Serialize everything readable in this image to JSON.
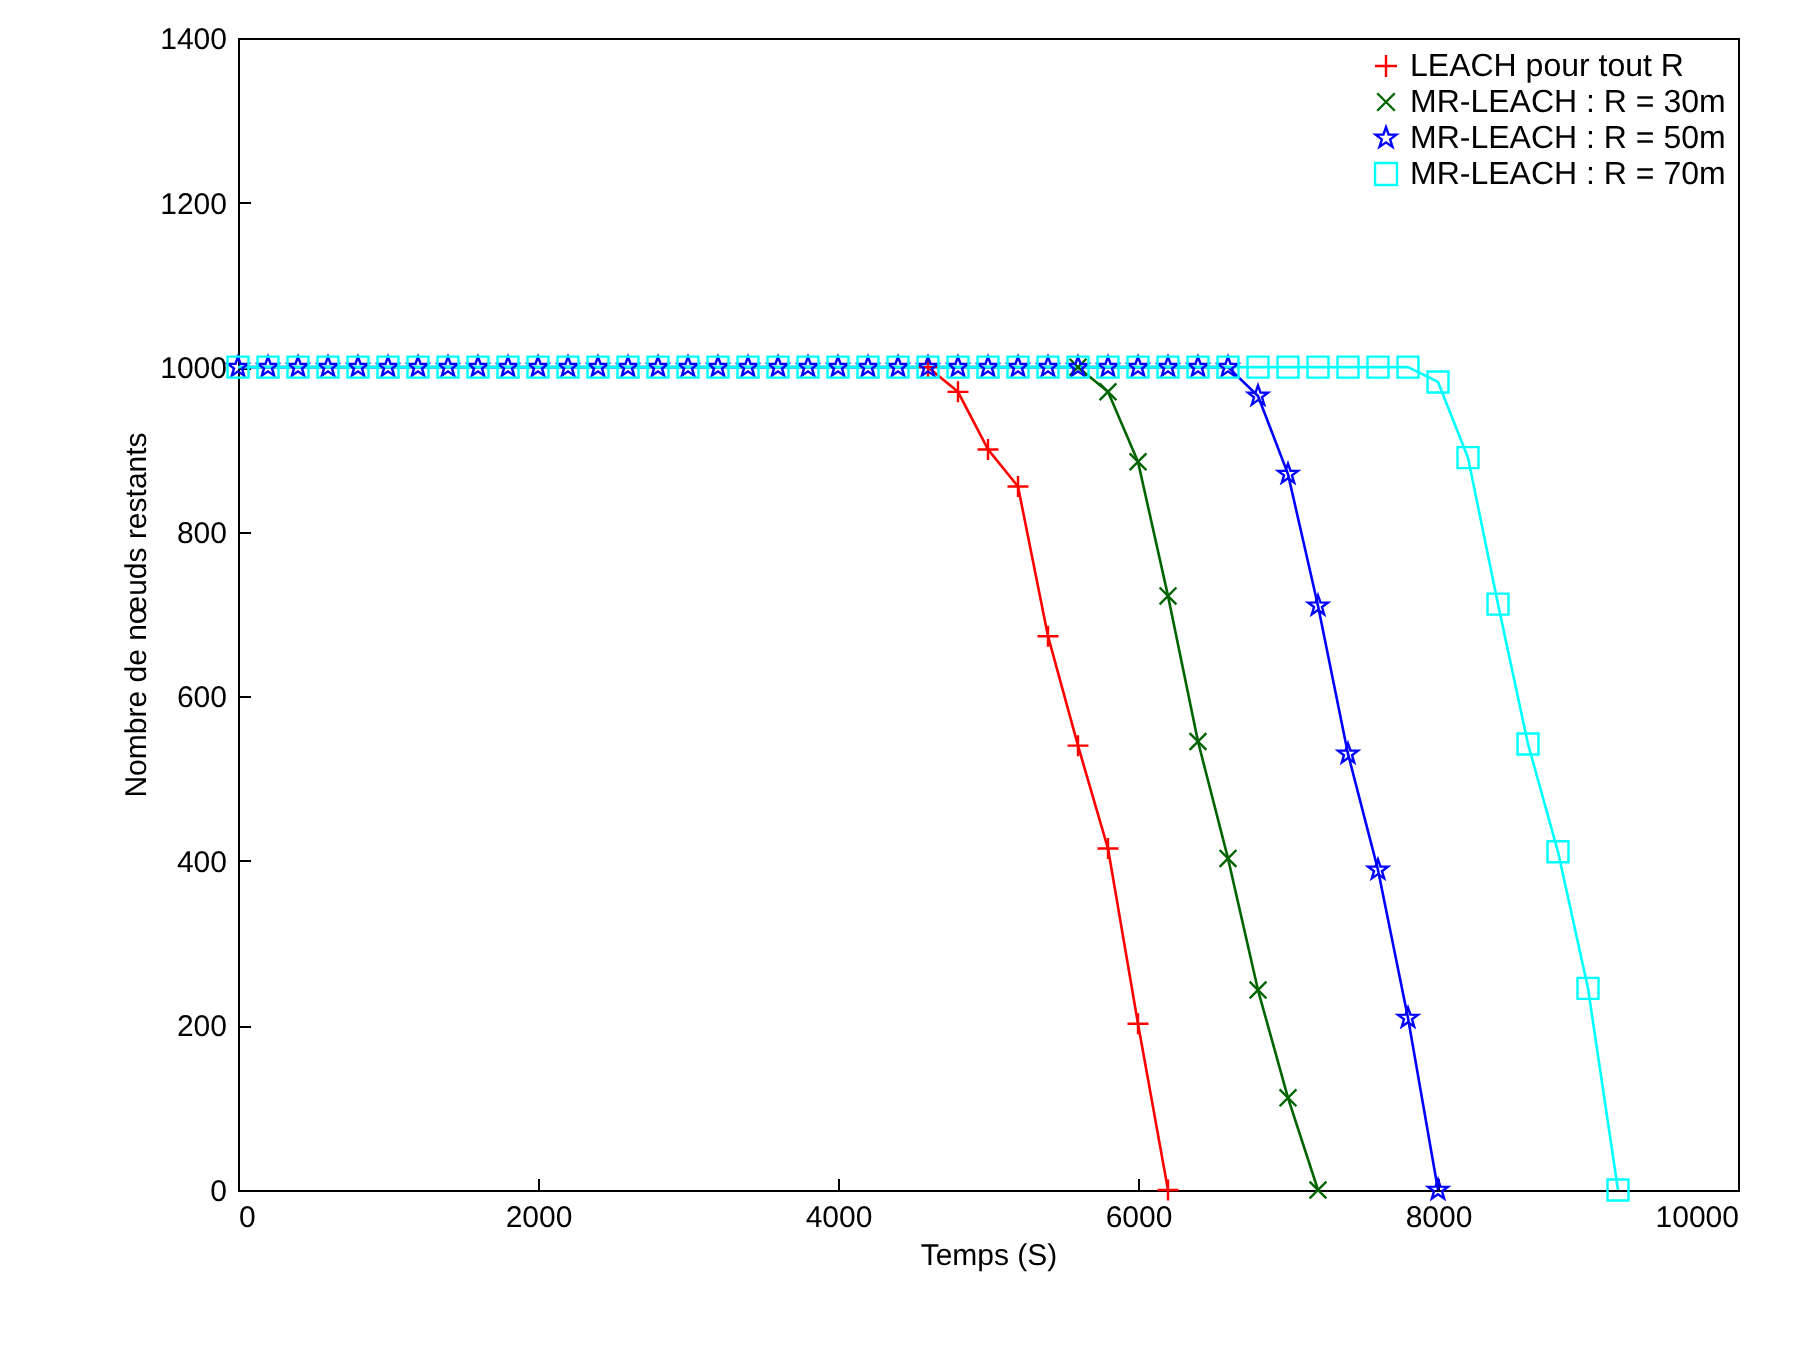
{
  "chart_data": {
    "type": "line",
    "xlabel": "Temps (S)",
    "ylabel": "Nombre de nœuds restants",
    "xlim": [
      0,
      10000
    ],
    "ylim": [
      0,
      1400
    ],
    "xticks": [
      0,
      2000,
      4000,
      6000,
      8000,
      10000
    ],
    "yticks": [
      0,
      200,
      400,
      600,
      800,
      1000,
      1200,
      1400
    ],
    "grid": false,
    "legend": "top right",
    "line_style": "solid",
    "series": [
      {
        "name": "LEACH pour tout R",
        "color": "#ff0000",
        "marker": "cross",
        "x": [
          4600,
          4800,
          5000,
          5200,
          5400,
          5600,
          5800,
          6000,
          6200
        ],
        "values": [
          1000,
          970,
          900,
          855,
          673,
          540,
          415,
          202,
          0
        ]
      },
      {
        "name": "MR-LEACH : R = 30m",
        "color": "#006400",
        "marker": "x",
        "x": [
          5600,
          5800,
          6000,
          6200,
          6400,
          6600,
          6800,
          7000,
          7200
        ],
        "values": [
          1000,
          970,
          885,
          722,
          545,
          403,
          243,
          112,
          0
        ]
      },
      {
        "name": "MR-LEACH : R = 50m",
        "color": "#0000ff",
        "marker": "star",
        "x": [
          0,
          200,
          400,
          600,
          800,
          1000,
          1200,
          1400,
          1600,
          1800,
          2000,
          2200,
          2400,
          2600,
          2800,
          3000,
          3200,
          3400,
          3600,
          3800,
          4000,
          4200,
          4400,
          4600,
          4800,
          5000,
          5200,
          5400,
          5600,
          5800,
          6000,
          6200,
          6400,
          6600,
          6800,
          7000,
          7200,
          7400,
          7600,
          7800,
          8000
        ],
        "values": [
          1000,
          1000,
          1000,
          1000,
          1000,
          1000,
          1000,
          1000,
          1000,
          1000,
          1000,
          1000,
          1000,
          1000,
          1000,
          1000,
          1000,
          1000,
          1000,
          1000,
          1000,
          1000,
          1000,
          1000,
          1000,
          1000,
          1000,
          1000,
          1000,
          1000,
          1000,
          1000,
          1000,
          1000,
          965,
          870,
          710,
          530,
          389,
          209,
          0
        ]
      },
      {
        "name": "MR-LEACH : R = 70m",
        "color": "#00ffff",
        "marker": "square",
        "x": [
          0,
          200,
          400,
          600,
          800,
          1000,
          1200,
          1400,
          1600,
          1800,
          2000,
          2200,
          2400,
          2600,
          2800,
          3000,
          3200,
          3400,
          3600,
          3800,
          4000,
          4200,
          4400,
          4600,
          4800,
          5000,
          5200,
          5400,
          5600,
          5800,
          6000,
          6200,
          6400,
          6600,
          6800,
          7000,
          7200,
          7400,
          7600,
          7800,
          8000,
          8200,
          8400,
          8600,
          8800,
          9000,
          9200
        ],
        "values": [
          1000,
          1000,
          1000,
          1000,
          1000,
          1000,
          1000,
          1000,
          1000,
          1000,
          1000,
          1000,
          1000,
          1000,
          1000,
          1000,
          1000,
          1000,
          1000,
          1000,
          1000,
          1000,
          1000,
          1000,
          1000,
          1000,
          1000,
          1000,
          1000,
          1000,
          1000,
          1000,
          1000,
          1000,
          1000,
          1000,
          1000,
          1000,
          1000,
          1000,
          982,
          890,
          712,
          542,
          411,
          245,
          0
        ]
      }
    ]
  }
}
